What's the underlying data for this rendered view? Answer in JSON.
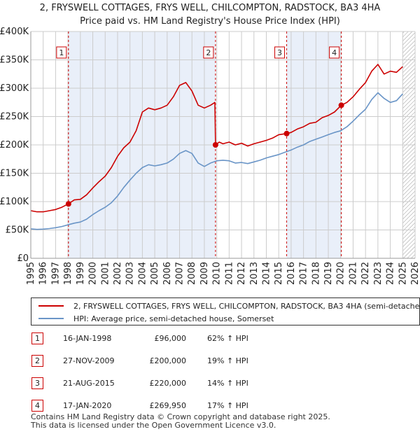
{
  "title_line1": "2, FRYSWELL COTTAGES, FRYS WELL, CHILCOMPTON, RADSTOCK, BA3 4HA",
  "title_line2": "Price paid vs. HM Land Registry's House Price Index (HPI)",
  "chart_data": {
    "type": "line",
    "title": "Price paid vs. HM Land Registry's House Price Index (HPI)",
    "xlabel": "",
    "ylabel": "",
    "xlim": [
      1995,
      2026
    ],
    "ylim": [
      0,
      400000
    ],
    "x_ticks": [
      1995,
      1996,
      1997,
      1998,
      1999,
      2000,
      2001,
      2002,
      2003,
      2004,
      2005,
      2006,
      2007,
      2008,
      2009,
      2010,
      2011,
      2012,
      2013,
      2014,
      2015,
      2016,
      2017,
      2018,
      2019,
      2020,
      2021,
      2022,
      2023,
      2024,
      2025,
      2026
    ],
    "y_ticks": [
      {
        "value": 0,
        "label": "£0"
      },
      {
        "value": 50000,
        "label": "£50K"
      },
      {
        "value": 100000,
        "label": "£100K"
      },
      {
        "value": 150000,
        "label": "£150K"
      },
      {
        "value": 200000,
        "label": "£200K"
      },
      {
        "value": 250000,
        "label": "£250K"
      },
      {
        "value": 300000,
        "label": "£300K"
      },
      {
        "value": 350000,
        "label": "£350K"
      },
      {
        "value": 400000,
        "label": "£400K"
      }
    ],
    "grid": true,
    "hatched_from": 2025.0,
    "shaded_spans": [
      [
        1998.04,
        2009.9
      ],
      [
        2015.64,
        2020.05
      ]
    ],
    "series": [
      {
        "name": "2, FRYSWELL COTTAGES, FRYS WELL, CHILCOMPTON, RADSTOCK, BA3 4HA (semi-detached house)",
        "color": "#cc0000",
        "x": [
          1995.0,
          1995.5,
          1996.0,
          1996.5,
          1997.0,
          1997.5,
          1998.04,
          1998.5,
          1999.0,
          1999.5,
          2000.0,
          2000.5,
          2001.0,
          2001.5,
          2002.0,
          2002.5,
          2003.0,
          2003.5,
          2004.0,
          2004.5,
          2005.0,
          2005.5,
          2006.0,
          2006.5,
          2007.0,
          2007.5,
          2008.0,
          2008.5,
          2009.0,
          2009.5,
          2009.85,
          2009.9,
          2010.2,
          2010.5,
          2011.0,
          2011.5,
          2012.0,
          2012.5,
          2013.0,
          2013.5,
          2014.0,
          2014.5,
          2015.0,
          2015.64,
          2016.0,
          2016.5,
          2017.0,
          2017.5,
          2018.0,
          2018.5,
          2019.0,
          2019.5,
          2020.05,
          2020.5,
          2021.0,
          2021.5,
          2022.0,
          2022.5,
          2023.0,
          2023.5,
          2024.0,
          2024.5,
          2025.0
        ],
        "y": [
          84000,
          82000,
          82000,
          84000,
          86000,
          90000,
          96000,
          103000,
          104000,
          112000,
          124000,
          135000,
          145000,
          160000,
          180000,
          195000,
          205000,
          225000,
          258000,
          265000,
          262000,
          265000,
          270000,
          285000,
          305000,
          310000,
          295000,
          270000,
          265000,
          270000,
          275000,
          200000,
          205000,
          202000,
          205000,
          200000,
          203000,
          198000,
          202000,
          205000,
          208000,
          212000,
          218000,
          220000,
          222000,
          228000,
          232000,
          238000,
          240000,
          248000,
          252000,
          258000,
          269950,
          275000,
          285000,
          298000,
          310000,
          330000,
          342000,
          325000,
          330000,
          328000,
          338000
        ]
      },
      {
        "name": "HPI: Average price, semi-detached house, Somerset",
        "color": "#6a95c7",
        "x": [
          1995.0,
          1995.5,
          1996.0,
          1996.5,
          1997.0,
          1997.5,
          1998.0,
          1998.5,
          1999.0,
          1999.5,
          2000.0,
          2000.5,
          2001.0,
          2001.5,
          2002.0,
          2002.5,
          2003.0,
          2003.5,
          2004.0,
          2004.5,
          2005.0,
          2005.5,
          2006.0,
          2006.5,
          2007.0,
          2007.5,
          2008.0,
          2008.5,
          2009.0,
          2009.5,
          2010.0,
          2010.5,
          2011.0,
          2011.5,
          2012.0,
          2012.5,
          2013.0,
          2013.5,
          2014.0,
          2014.5,
          2015.0,
          2015.5,
          2016.0,
          2016.5,
          2017.0,
          2017.5,
          2018.0,
          2018.5,
          2019.0,
          2019.5,
          2020.0,
          2020.5,
          2021.0,
          2021.5,
          2022.0,
          2022.5,
          2023.0,
          2023.5,
          2024.0,
          2024.5,
          2025.0
        ],
        "y": [
          52000,
          51000,
          51500,
          52500,
          54000,
          56000,
          59000,
          62000,
          64000,
          69000,
          77000,
          84000,
          90000,
          98000,
          110000,
          125000,
          138000,
          150000,
          160000,
          165000,
          163000,
          165000,
          168000,
          175000,
          185000,
          190000,
          185000,
          168000,
          162000,
          168000,
          172000,
          173000,
          172000,
          168000,
          169000,
          167000,
          170000,
          173000,
          177000,
          180000,
          183000,
          187000,
          191000,
          196000,
          200000,
          206000,
          210000,
          214000,
          218000,
          222000,
          225000,
          232000,
          242000,
          253000,
          263000,
          280000,
          292000,
          282000,
          275000,
          278000,
          290000
        ]
      }
    ],
    "sale_markers": [
      {
        "label": "1",
        "x": 1998.04,
        "y": 96000
      },
      {
        "label": "2",
        "x": 2009.9,
        "y": 200000
      },
      {
        "label": "3",
        "x": 2015.64,
        "y": 220000
      },
      {
        "label": "4",
        "x": 2020.05,
        "y": 269950
      }
    ]
  },
  "legend": {
    "property_label": "2, FRYSWELL COTTAGES, FRYS WELL, CHILCOMPTON, RADSTOCK, BA3 4HA (semi-detached house)",
    "hpi_label": "HPI: Average price, semi-detached house, Somerset"
  },
  "sales": [
    {
      "num": "1",
      "date": "16-JAN-1998",
      "price": "£96,000",
      "hpi": "62% ↑ HPI"
    },
    {
      "num": "2",
      "date": "27-NOV-2009",
      "price": "£200,000",
      "hpi": "19% ↑ HPI"
    },
    {
      "num": "3",
      "date": "21-AUG-2015",
      "price": "£220,000",
      "hpi": "14% ↑ HPI"
    },
    {
      "num": "4",
      "date": "17-JAN-2020",
      "price": "£269,950",
      "hpi": "17% ↑ HPI"
    }
  ],
  "footer": {
    "line1": "Contains HM Land Registry data © Crown copyright and database right 2025.",
    "line2": "This data is licensed under the Open Government Licence v3.0."
  }
}
